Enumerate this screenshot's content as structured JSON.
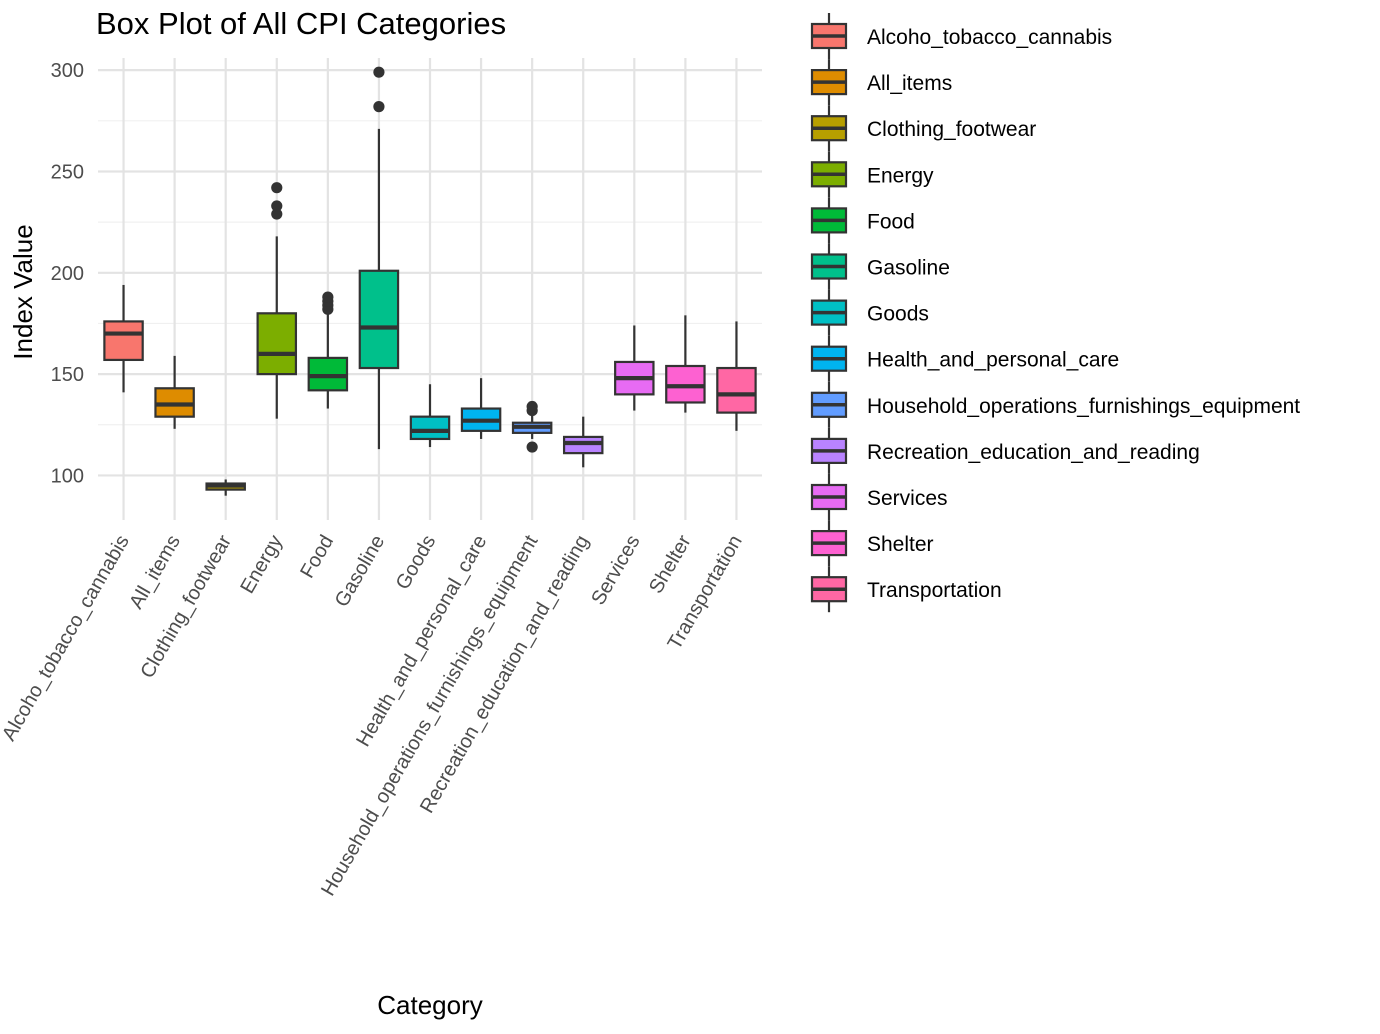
{
  "chart_data": {
    "type": "boxplot",
    "title": "Box Plot of All CPI Categories",
    "xlabel": "Category",
    "ylabel": "Index Value",
    "ylim": [
      78,
      306
    ],
    "yticks": [
      100,
      150,
      200,
      250,
      300
    ],
    "grid": true,
    "legend": {
      "title": "",
      "placement": "right"
    },
    "categories": [
      "Alcoho_tobacco_cannabis",
      "All_items",
      "Clothing_footwear",
      "Energy",
      "Food",
      "Gasoline",
      "Goods",
      "Health_and_personal_care",
      "Household_operations_furnishings_equipment",
      "Recreation_education_and_reading",
      "Services",
      "Shelter",
      "Transportation"
    ],
    "series": [
      {
        "name": "Alcoho_tobacco_cannabis",
        "color": "#F8766D",
        "min": 141,
        "q1": 157,
        "median": 170,
        "q3": 176,
        "max": 194,
        "outliers": []
      },
      {
        "name": "All_items",
        "color": "#DE8C00",
        "min": 123,
        "q1": 129,
        "median": 135,
        "q3": 143,
        "max": 159,
        "outliers": []
      },
      {
        "name": "Clothing_footwear",
        "color": "#B79F00",
        "min": 90,
        "q1": 93,
        "median": 95,
        "q3": 96,
        "max": 98,
        "outliers": []
      },
      {
        "name": "Energy",
        "color": "#7CAE00",
        "min": 128,
        "q1": 150,
        "median": 160,
        "q3": 180,
        "max": 218,
        "outliers": [
          229,
          233,
          242
        ]
      },
      {
        "name": "Food",
        "color": "#00BA38",
        "min": 133,
        "q1": 142,
        "median": 149,
        "q3": 158,
        "max": 180,
        "outliers": [
          182,
          184,
          186,
          188
        ]
      },
      {
        "name": "Gasoline",
        "color": "#00C08B",
        "min": 113,
        "q1": 153,
        "median": 173,
        "q3": 201,
        "max": 271,
        "outliers": [
          282,
          299
        ]
      },
      {
        "name": "Goods",
        "color": "#00BFC4",
        "min": 114,
        "q1": 118,
        "median": 122,
        "q3": 129,
        "max": 145,
        "outliers": []
      },
      {
        "name": "Health_and_personal_care",
        "color": "#00B4F0",
        "min": 118,
        "q1": 122,
        "median": 127,
        "q3": 133,
        "max": 148,
        "outliers": []
      },
      {
        "name": "Household_operations_furnishings_equipment",
        "color": "#619CFF",
        "min": 118,
        "q1": 121,
        "median": 124,
        "q3": 126,
        "max": 131,
        "outliers": [
          114,
          132,
          134
        ]
      },
      {
        "name": "Recreation_education_and_reading",
        "color": "#B983FF",
        "min": 104,
        "q1": 111,
        "median": 116,
        "q3": 119,
        "max": 129,
        "outliers": []
      },
      {
        "name": "Services",
        "color": "#E76BF3",
        "min": 132,
        "q1": 140,
        "median": 148,
        "q3": 156,
        "max": 174,
        "outliers": []
      },
      {
        "name": "Shelter",
        "color": "#FD61D1",
        "min": 131,
        "q1": 136,
        "median": 144,
        "q3": 154,
        "max": 179,
        "outliers": []
      },
      {
        "name": "Transportation",
        "color": "#FF67A4",
        "min": 122,
        "q1": 131,
        "median": 140,
        "q3": 153,
        "max": 176,
        "outliers": []
      }
    ]
  }
}
